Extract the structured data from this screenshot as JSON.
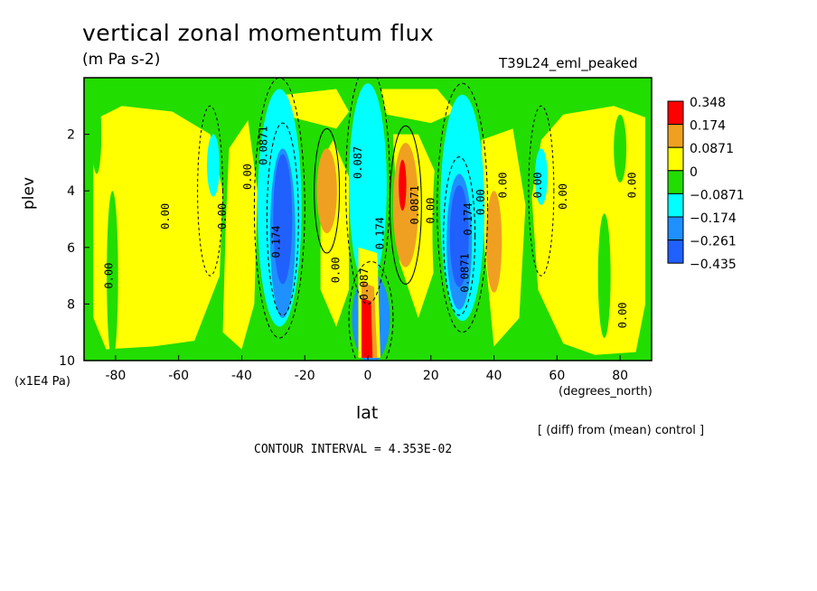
{
  "title": "vertical zonal momentum flux",
  "units": "(m Pa s-2)",
  "run_id": "T39L24_eml_peaked",
  "y_axis_label": "plev",
  "y_axis_units": "(x1E4 Pa)",
  "x_axis_label": "lat",
  "x_axis_units": "(degrees_north)",
  "comparison_note": "[ (diff) from (mean) control ]",
  "contour_interval_text": "CONTOUR INTERVAL = 4.353E-02",
  "colors": {
    "red": "#ff0000",
    "orange": "#f0a020",
    "yellow": "#ffff00",
    "green": "#22dd00",
    "cyan": "#00ffff",
    "light_blue": "#1e90ff",
    "blue": "#2060ff"
  },
  "chart_data": {
    "type": "heatmap",
    "x": {
      "label": "lat",
      "range": [
        -90,
        90
      ],
      "ticks": [
        -80,
        -60,
        -40,
        -20,
        0,
        20,
        40,
        60,
        80
      ]
    },
    "y": {
      "label": "plev",
      "range": [
        10,
        0
      ],
      "ticks": [
        2,
        4,
        6,
        8,
        10
      ],
      "inverted": true
    },
    "legend": {
      "placement": "right",
      "levels": [
        "0.348",
        "0.174",
        "0.0871",
        "0",
        "−0.0871",
        "−0.174",
        "−0.261",
        "−0.435"
      ],
      "colors": [
        "#ff0000",
        "#f0a020",
        "#ffff00",
        "#22dd00",
        "#00ffff",
        "#1e90ff",
        "#2060ff"
      ]
    },
    "contour_labels": [
      {
        "text": "0.00",
        "lat": -81,
        "plev": 7.0
      },
      {
        "text": "0.00",
        "lat": -63,
        "plev": 4.9
      },
      {
        "text": "0.00",
        "lat": -45,
        "plev": 4.9
      },
      {
        "text": "0.00",
        "lat": -37,
        "plev": 3.5
      },
      {
        "text": "0.0871",
        "lat": -32,
        "plev": 2.4
      },
      {
        "text": "0.174",
        "lat": -28,
        "plev": 5.8
      },
      {
        "text": "0.00",
        "lat": -9,
        "plev": 6.8
      },
      {
        "text": "0.087",
        "lat": -2,
        "plev": 3.0
      },
      {
        "text": "0.087",
        "lat": 0,
        "plev": 7.3
      },
      {
        "text": "0.174",
        "lat": 5,
        "plev": 5.5
      },
      {
        "text": "0.0871",
        "lat": 16,
        "plev": 4.5
      },
      {
        "text": "0.00",
        "lat": 21,
        "plev": 4.7
      },
      {
        "text": "0.0871",
        "lat": 32,
        "plev": 6.9
      },
      {
        "text": "0.174",
        "lat": 33,
        "plev": 5.0
      },
      {
        "text": "0.00",
        "lat": 37,
        "plev": 4.4
      },
      {
        "text": "0.00",
        "lat": 44,
        "plev": 3.8
      },
      {
        "text": "0.00",
        "lat": 55,
        "plev": 3.8
      },
      {
        "text": "0.00",
        "lat": 63,
        "plev": 4.2
      },
      {
        "text": "0.00",
        "lat": 85,
        "plev": 3.8
      },
      {
        "text": "0.00",
        "lat": 82,
        "plev": 8.4
      }
    ]
  }
}
